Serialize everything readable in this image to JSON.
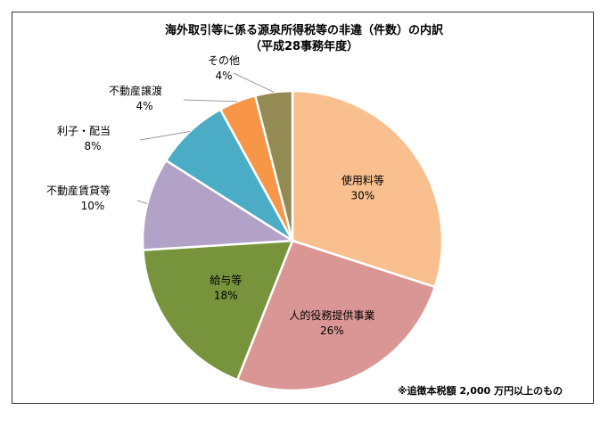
{
  "chart_data": {
    "type": "pie",
    "title": "海外取引等に係る源泉所得税等の非違（件数）の内訳",
    "subtitle": "（平成28事務年度）",
    "note": "※追徴本税額 2,000 万円以上のもの",
    "slices": [
      {
        "label": "使用料等",
        "value": 30,
        "value_label": "30%",
        "color": "#F9BF8F"
      },
      {
        "label": "人的役務提供事業",
        "value": 26,
        "value_label": "26%",
        "color": "#DA9694"
      },
      {
        "label": "給与等",
        "value": 18,
        "value_label": "18%",
        "color": "#77933C"
      },
      {
        "label": "不動産賃貸等",
        "value": 10,
        "value_label": "10%",
        "color": "#B3A2C7"
      },
      {
        "label": "利子・配当",
        "value": 8,
        "value_label": "8%",
        "color": "#4BACC6"
      },
      {
        "label": "不動産譲渡",
        "value": 4,
        "value_label": "4%",
        "color": "#F79646"
      },
      {
        "label": "その他",
        "value": 4,
        "value_label": "4%",
        "color": "#948A54"
      }
    ]
  }
}
